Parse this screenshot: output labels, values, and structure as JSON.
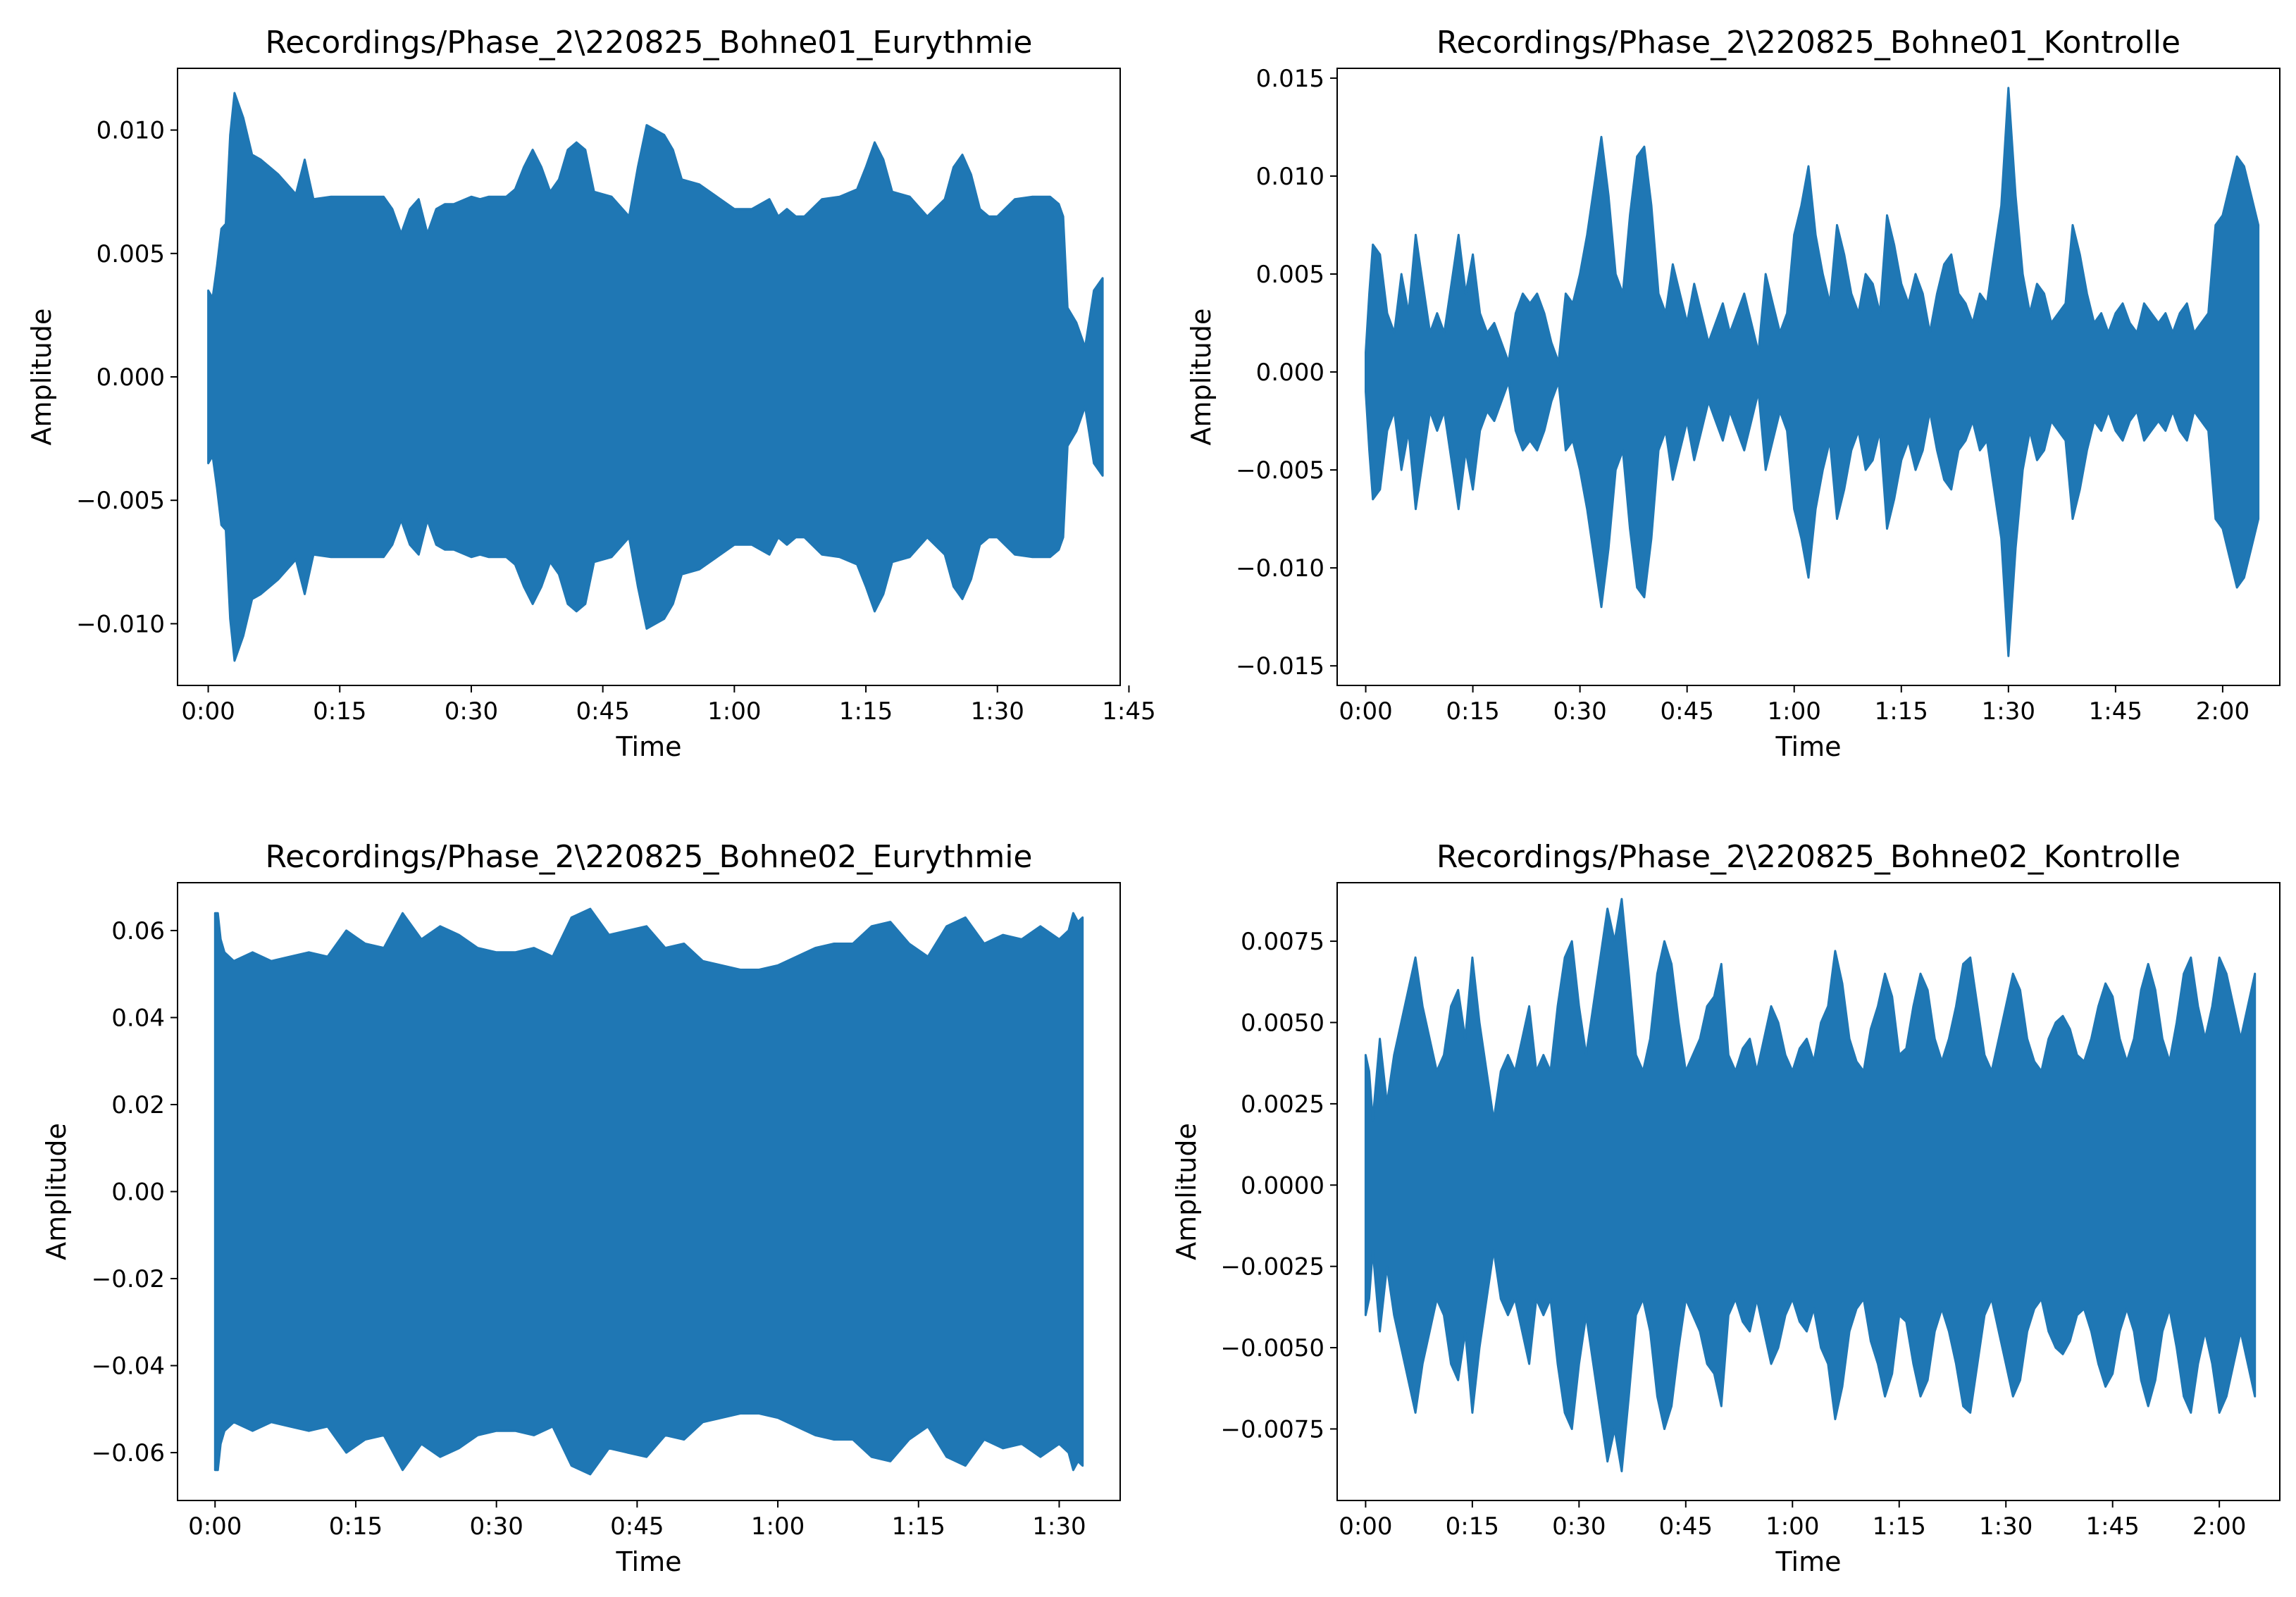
{
  "figure": {
    "colors": {
      "waveform": "#1f77b4",
      "axes": "#000000",
      "background": "#ffffff"
    }
  },
  "chart_data": [
    {
      "type": "area",
      "title": "Recordings/Phase_2\\220825_Bohne01_Eurythmie",
      "xlabel": "Time",
      "ylabel": "Amplitude",
      "xlim": [
        -3.5,
        104
      ],
      "ylim": [
        -0.0125,
        0.0125
      ],
      "x_ticks": [
        0,
        15,
        30,
        45,
        60,
        75,
        90,
        105
      ],
      "x_tick_labels": [
        "0:00",
        "0:15",
        "0:30",
        "0:45",
        "1:00",
        "1:15",
        "1:30",
        "1:45"
      ],
      "y_ticks": [
        -0.01,
        -0.005,
        0.0,
        0.005,
        0.01
      ],
      "y_tick_labels": [
        "−0.010",
        "−0.005",
        "0.000",
        "0.005",
        "0.010"
      ],
      "grid": false,
      "series": [
        {
          "x": [
            0,
            0.5,
            1,
            1.5,
            2,
            2.5,
            3,
            4,
            5,
            6,
            8,
            10,
            11,
            12,
            14,
            18,
            20,
            21,
            22,
            23,
            24,
            25,
            26,
            27,
            28,
            30,
            31,
            32,
            34,
            35,
            36,
            37,
            38,
            39,
            40,
            41,
            42,
            43,
            44,
            46,
            48,
            49,
            50,
            52,
            53,
            54,
            56,
            58,
            60,
            62,
            64,
            65,
            66,
            67,
            68,
            70,
            72,
            74,
            75,
            76,
            77,
            78,
            80,
            82,
            84,
            85,
            86,
            87,
            88,
            89,
            90,
            92,
            94,
            96,
            97,
            97.5,
            98,
            99,
            100,
            101,
            102
          ],
          "upper": [
            0.0035,
            0.0032,
            0.0045,
            0.006,
            0.0062,
            0.0098,
            0.0115,
            0.0105,
            0.009,
            0.0088,
            0.0082,
            0.0074,
            0.0088,
            0.0072,
            0.0073,
            0.0073,
            0.0073,
            0.0068,
            0.0058,
            0.0068,
            0.0072,
            0.0058,
            0.0068,
            0.007,
            0.007,
            0.0073,
            0.0072,
            0.0073,
            0.0073,
            0.0076,
            0.0085,
            0.0092,
            0.0085,
            0.0075,
            0.008,
            0.0092,
            0.0095,
            0.0092,
            0.0075,
            0.0073,
            0.0065,
            0.0085,
            0.0102,
            0.0098,
            0.0092,
            0.008,
            0.0078,
            0.0073,
            0.0068,
            0.0068,
            0.0072,
            0.0065,
            0.0068,
            0.0065,
            0.0065,
            0.0072,
            0.0073,
            0.0076,
            0.0085,
            0.0095,
            0.0088,
            0.0075,
            0.0073,
            0.0065,
            0.0072,
            0.0085,
            0.009,
            0.0082,
            0.0068,
            0.0065,
            0.0065,
            0.0072,
            0.0073,
            0.0073,
            0.007,
            0.0065,
            0.0028,
            0.0022,
            0.0012,
            0.0035,
            0.004
          ]
        }
      ]
    },
    {
      "type": "area",
      "title": "Recordings/Phase_2\\220825_Bohne01_Kontrolle",
      "xlabel": "Time",
      "ylabel": "Amplitude",
      "xlim": [
        -4,
        128
      ],
      "ylim": [
        -0.016,
        0.0155
      ],
      "x_ticks": [
        0,
        15,
        30,
        45,
        60,
        75,
        90,
        105,
        120
      ],
      "x_tick_labels": [
        "0:00",
        "0:15",
        "0:30",
        "0:45",
        "1:00",
        "1:15",
        "1:30",
        "1:45",
        "2:00"
      ],
      "y_ticks": [
        -0.015,
        -0.01,
        -0.005,
        0.0,
        0.005,
        0.01,
        0.015
      ],
      "y_tick_labels": [
        "−0.015",
        "−0.010",
        "−0.005",
        "0.000",
        "0.005",
        "0.010",
        "0.015"
      ],
      "grid": false,
      "series": [
        {
          "x": [
            0,
            0.5,
            1,
            2,
            3,
            4,
            5,
            6,
            7,
            8,
            9,
            10,
            11,
            12,
            13,
            14,
            15,
            16,
            17,
            18,
            19,
            20,
            21,
            22,
            23,
            24,
            25,
            26,
            27,
            28,
            29,
            30,
            31,
            32,
            33,
            34,
            35,
            36,
            37,
            38,
            39,
            40,
            41,
            42,
            43,
            44,
            45,
            46,
            47,
            48,
            49,
            50,
            51,
            52,
            53,
            54,
            55,
            56,
            57,
            58,
            59,
            60,
            61,
            62,
            63,
            64,
            65,
            66,
            67,
            68,
            69,
            70,
            71,
            72,
            73,
            74,
            75,
            76,
            77,
            78,
            79,
            80,
            81,
            82,
            83,
            84,
            85,
            86,
            87,
            88,
            89,
            90,
            91,
            92,
            93,
            94,
            95,
            96,
            97,
            98,
            99,
            100,
            101,
            102,
            103,
            104,
            105,
            106,
            107,
            108,
            109,
            110,
            111,
            112,
            113,
            114,
            115,
            116,
            117,
            118,
            119,
            120,
            121,
            122,
            123,
            124,
            125
          ],
          "upper": [
            0.001,
            0.004,
            0.0065,
            0.006,
            0.003,
            0.002,
            0.005,
            0.003,
            0.007,
            0.0045,
            0.002,
            0.003,
            0.002,
            0.0045,
            0.007,
            0.004,
            0.006,
            0.003,
            0.002,
            0.0025,
            0.0015,
            0.0005,
            0.003,
            0.004,
            0.0035,
            0.004,
            0.003,
            0.0015,
            0.0005,
            0.004,
            0.0035,
            0.005,
            0.007,
            0.0095,
            0.012,
            0.009,
            0.005,
            0.004,
            0.008,
            0.011,
            0.0115,
            0.0085,
            0.004,
            0.003,
            0.0055,
            0.004,
            0.0025,
            0.0045,
            0.003,
            0.0015,
            0.0025,
            0.0035,
            0.002,
            0.003,
            0.004,
            0.0025,
            0.001,
            0.005,
            0.0035,
            0.002,
            0.003,
            0.007,
            0.0085,
            0.0105,
            0.007,
            0.005,
            0.0035,
            0.0075,
            0.006,
            0.004,
            0.003,
            0.005,
            0.0045,
            0.003,
            0.008,
            0.0065,
            0.0045,
            0.0035,
            0.005,
            0.004,
            0.002,
            0.004,
            0.0055,
            0.006,
            0.004,
            0.0035,
            0.0025,
            0.004,
            0.0035,
            0.006,
            0.0085,
            0.0145,
            0.009,
            0.005,
            0.003,
            0.0045,
            0.004,
            0.0025,
            0.003,
            0.0035,
            0.0075,
            0.006,
            0.004,
            0.0025,
            0.003,
            0.002,
            0.003,
            0.0035,
            0.0025,
            0.002,
            0.0035,
            0.003,
            0.0025,
            0.003,
            0.002,
            0.003,
            0.0035,
            0.002,
            0.0025,
            0.003,
            0.0075,
            0.008,
            0.0095,
            0.011,
            0.0105,
            0.009,
            0.0075
          ]
        }
      ]
    },
    {
      "type": "area",
      "title": "Recordings/Phase_2\\220825_Bohne02_Eurythmie",
      "xlabel": "Time",
      "ylabel": "Amplitude",
      "xlim": [
        -4,
        96.5
      ],
      "ylim": [
        -0.071,
        0.071
      ],
      "x_ticks": [
        0,
        15,
        30,
        45,
        60,
        75,
        90
      ],
      "x_tick_labels": [
        "0:00",
        "0:15",
        "0:30",
        "0:45",
        "1:00",
        "1:15",
        "1:30"
      ],
      "y_ticks": [
        -0.06,
        -0.04,
        -0.02,
        0.0,
        0.02,
        0.04,
        0.06
      ],
      "y_tick_labels": [
        "−0.06",
        "−0.04",
        "−0.02",
        "0.00",
        "0.02",
        "0.04",
        "0.06"
      ],
      "grid": false,
      "series": [
        {
          "x": [
            0,
            0.3,
            0.6,
            1,
            2,
            4,
            6,
            8,
            10,
            12,
            14,
            16,
            18,
            20,
            22,
            24,
            26,
            28,
            30,
            32,
            34,
            36,
            38,
            40,
            42,
            44,
            46,
            48,
            50,
            52,
            54,
            56,
            58,
            60,
            62,
            64,
            66,
            68,
            70,
            72,
            74,
            76,
            78,
            80,
            82,
            84,
            86,
            88,
            90,
            91,
            91.5,
            92,
            92.5
          ],
          "upper": [
            0.064,
            0.064,
            0.058,
            0.055,
            0.053,
            0.055,
            0.053,
            0.054,
            0.055,
            0.054,
            0.06,
            0.057,
            0.056,
            0.064,
            0.058,
            0.061,
            0.059,
            0.056,
            0.055,
            0.055,
            0.056,
            0.054,
            0.063,
            0.065,
            0.059,
            0.06,
            0.061,
            0.056,
            0.057,
            0.053,
            0.052,
            0.051,
            0.051,
            0.052,
            0.054,
            0.056,
            0.057,
            0.057,
            0.061,
            0.062,
            0.057,
            0.054,
            0.061,
            0.063,
            0.057,
            0.059,
            0.058,
            0.061,
            0.058,
            0.06,
            0.064,
            0.062,
            0.063
          ]
        }
      ]
    },
    {
      "type": "area",
      "title": "Recordings/Phase_2\\220825_Bohne02_Kontrolle",
      "xlabel": "Time",
      "ylabel": "Amplitude",
      "xlim": [
        -4,
        128.5
      ],
      "ylim": [
        -0.0097,
        0.0093
      ],
      "x_ticks": [
        0,
        15,
        30,
        45,
        60,
        75,
        90,
        105,
        120
      ],
      "x_tick_labels": [
        "0:00",
        "0:15",
        "0:30",
        "0:45",
        "1:00",
        "1:15",
        "1:30",
        "1:45",
        "2:00"
      ],
      "y_ticks": [
        -0.0075,
        -0.005,
        -0.0025,
        0.0,
        0.0025,
        0.005,
        0.0075
      ],
      "y_tick_labels": [
        "−0.0075",
        "−0.0050",
        "−0.0025",
        "0.0000",
        "0.0025",
        "0.0050",
        "0.0075"
      ],
      "grid": false,
      "series": [
        {
          "x": [
            0,
            0.5,
            1,
            2,
            3,
            4,
            5,
            6,
            7,
            8,
            9,
            10,
            11,
            12,
            13,
            14,
            15,
            16,
            17,
            18,
            19,
            20,
            21,
            22,
            23,
            24,
            25,
            26,
            27,
            28,
            29,
            30,
            31,
            32,
            33,
            34,
            35,
            36,
            37,
            38,
            39,
            40,
            41,
            42,
            43,
            44,
            45,
            46,
            47,
            48,
            49,
            50,
            51,
            52,
            53,
            54,
            55,
            56,
            57,
            58,
            59,
            60,
            61,
            62,
            63,
            64,
            65,
            66,
            67,
            68,
            69,
            70,
            71,
            72,
            73,
            74,
            75,
            76,
            77,
            78,
            79,
            80,
            81,
            82,
            83,
            84,
            85,
            86,
            87,
            88,
            89,
            90,
            91,
            92,
            93,
            94,
            95,
            96,
            97,
            98,
            99,
            100,
            101,
            102,
            103,
            104,
            105,
            106,
            107,
            108,
            109,
            110,
            111,
            112,
            113,
            114,
            115,
            116,
            117,
            118,
            119,
            120,
            121,
            122,
            123,
            124,
            125
          ],
          "upper": [
            0.004,
            0.0035,
            0.002,
            0.0045,
            0.0025,
            0.004,
            0.005,
            0.006,
            0.007,
            0.0055,
            0.0045,
            0.0035,
            0.004,
            0.0055,
            0.006,
            0.0045,
            0.007,
            0.005,
            0.0035,
            0.002,
            0.0035,
            0.004,
            0.0035,
            0.0045,
            0.0055,
            0.0035,
            0.004,
            0.0035,
            0.0055,
            0.007,
            0.0075,
            0.0055,
            0.004,
            0.0055,
            0.007,
            0.0085,
            0.0075,
            0.0088,
            0.0065,
            0.004,
            0.0035,
            0.0045,
            0.0065,
            0.0075,
            0.0068,
            0.005,
            0.0035,
            0.004,
            0.0045,
            0.0055,
            0.0058,
            0.0068,
            0.004,
            0.0035,
            0.0042,
            0.0045,
            0.0035,
            0.0045,
            0.0055,
            0.005,
            0.004,
            0.0035,
            0.0042,
            0.0045,
            0.0038,
            0.005,
            0.0055,
            0.0072,
            0.0062,
            0.0045,
            0.0038,
            0.0035,
            0.0048,
            0.0055,
            0.0065,
            0.0058,
            0.004,
            0.0042,
            0.0055,
            0.0065,
            0.006,
            0.0045,
            0.0038,
            0.0045,
            0.0055,
            0.0068,
            0.007,
            0.0055,
            0.004,
            0.0035,
            0.0045,
            0.0055,
            0.0065,
            0.006,
            0.0045,
            0.0038,
            0.0035,
            0.0045,
            0.005,
            0.0052,
            0.0048,
            0.004,
            0.0038,
            0.0045,
            0.0055,
            0.0062,
            0.0058,
            0.0045,
            0.0038,
            0.0045,
            0.006,
            0.0068,
            0.006,
            0.0045,
            0.0038,
            0.005,
            0.0065,
            0.007,
            0.0055,
            0.0045,
            0.0055,
            0.007,
            0.0065,
            0.0055,
            0.0045,
            0.0055,
            0.0065
          ]
        }
      ]
    }
  ]
}
